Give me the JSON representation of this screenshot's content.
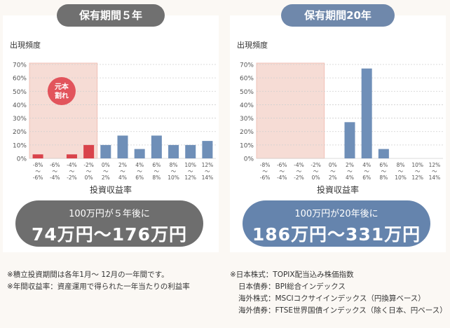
{
  "chart_data": [
    {
      "type": "bar",
      "title": "保有期間５年",
      "ylabel": "出現頻度",
      "xlabel": "投資収益率",
      "yticks": [
        "70%",
        "60%",
        "50%",
        "40%",
        "30%",
        "20%",
        "10%",
        "0%"
      ],
      "ylim": [
        0,
        70
      ],
      "categories": [
        [
          "-8%",
          "〜",
          "-6%"
        ],
        [
          "-6%",
          "〜",
          "-4%"
        ],
        [
          "-4%",
          "〜",
          "-2%"
        ],
        [
          "-2%",
          "〜",
          "0%"
        ],
        [
          "0%",
          "〜",
          "2%"
        ],
        [
          "2%",
          "〜",
          "4%"
        ],
        [
          "4%",
          "〜",
          "6%"
        ],
        [
          "6%",
          "〜",
          "8%"
        ],
        [
          "8%",
          "〜",
          "10%"
        ],
        [
          "10%",
          "〜",
          "12%"
        ],
        [
          "12%",
          "〜",
          "14%"
        ]
      ],
      "values": [
        3,
        0,
        3,
        10,
        10,
        17,
        7,
        17,
        10,
        10,
        13
      ],
      "loss_region_label": [
        "元本",
        "割れ"
      ],
      "colors": {
        "loss": "#d9434b",
        "gain": "#6f8fb8",
        "shade": "#f6dcd5"
      }
    },
    {
      "type": "bar",
      "title": "保有期間20年",
      "ylabel": "出現頻度",
      "xlabel": "投資収益率",
      "yticks": [
        "70%",
        "60%",
        "50%",
        "40%",
        "30%",
        "20%",
        "10%",
        "0%"
      ],
      "ylim": [
        0,
        70
      ],
      "categories": [
        [
          "-8%",
          "〜",
          "-6%"
        ],
        [
          "-6%",
          "〜",
          "-4%"
        ],
        [
          "-4%",
          "〜",
          "-2%"
        ],
        [
          "-2%",
          "〜",
          "0%"
        ],
        [
          "0%",
          "〜",
          "2%"
        ],
        [
          "2%",
          "〜",
          "4%"
        ],
        [
          "4%",
          "〜",
          "6%"
        ],
        [
          "6%",
          "〜",
          "8%"
        ],
        [
          "8%",
          "〜",
          "10%"
        ],
        [
          "10%",
          "〜",
          "12%"
        ],
        [
          "12%",
          "〜",
          "14%"
        ]
      ],
      "values": [
        0,
        0,
        0,
        0,
        0,
        27,
        67,
        7,
        0,
        0,
        0
      ],
      "colors": {
        "loss": "#d9434b",
        "gain": "#6f8fb8",
        "shade": "#f6dcd5"
      }
    }
  ],
  "summary_left": {
    "line1": "100万円が５年後に",
    "line2": "74万円〜176万円"
  },
  "summary_right": {
    "line1": "100万円が20年後に",
    "line2": "186万円〜331万円"
  },
  "notes_left": [
    "※積立投資期間は各年1月〜 12月の一年間です。",
    "※年間収益率：資産運用で得られた一年当たりの利益率"
  ],
  "notes_right": [
    "※日本株式：TOPIX配当込み株価指数",
    "日本債券：BPI総合インデックス",
    "海外株式：MSCIコクサイインデックス（円換算ベース）",
    "海外債券：FTSE世界国債インデックス（除く日本、円ベース）"
  ]
}
